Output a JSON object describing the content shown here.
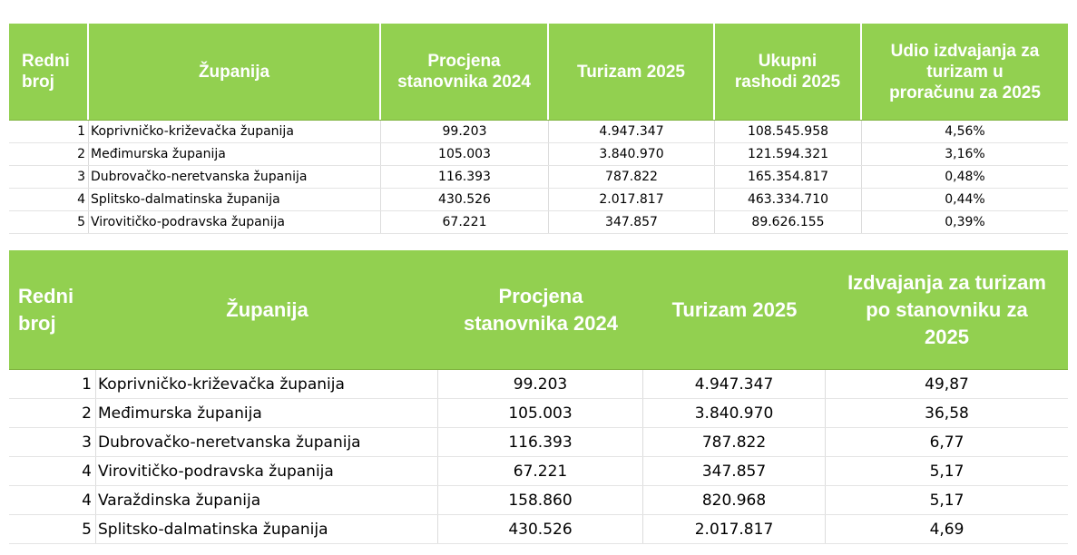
{
  "table1": {
    "headers": {
      "rank": "Redni\nbroj",
      "county": "Županija",
      "population": "Procjena\nstanovnika 2024",
      "tourism": "Turizam 2025",
      "expenses": "Ukupni\nrashodi 2025",
      "share": "Udio izdvajanja za\nturizam u\nproračunu za 2025"
    },
    "rows": [
      {
        "rank": "1",
        "county": "Koprivničko-križevačka županija",
        "population": "99.203",
        "tourism": "4.947.347",
        "expenses": "108.545.958",
        "share": "4,56%"
      },
      {
        "rank": "2",
        "county": "Međimurska županija",
        "population": "105.003",
        "tourism": "3.840.970",
        "expenses": "121.594.321",
        "share": "3,16%"
      },
      {
        "rank": "3",
        "county": "Dubrovačko-neretvanska županija",
        "population": "116.393",
        "tourism": "787.822",
        "expenses": "165.354.817",
        "share": "0,48%"
      },
      {
        "rank": "4",
        "county": "Splitsko-dalmatinska županija",
        "population": "430.526",
        "tourism": "2.017.817",
        "expenses": "463.334.710",
        "share": "0,44%"
      },
      {
        "rank": "5",
        "county": "Virovitičko-podravska županija",
        "population": "67.221",
        "tourism": "347.857",
        "expenses": "89.626.155",
        "share": "0,39%"
      }
    ]
  },
  "table2": {
    "headers": {
      "rank": "Redni\nbroj",
      "county": "Županija",
      "population": "Procjena\nstanovnika 2024",
      "tourism": "Turizam 2025",
      "per_capita": "Izdvajanja za turizam\npo stanovniku za\n2025"
    },
    "rows": [
      {
        "rank": "1",
        "county": "Koprivničko-križevačka županija",
        "population": "99.203",
        "tourism": "4.947.347",
        "per_capita": "49,87"
      },
      {
        "rank": "2",
        "county": "Međimurska županija",
        "population": "105.003",
        "tourism": "3.840.970",
        "per_capita": "36,58"
      },
      {
        "rank": "3",
        "county": "Dubrovačko-neretvanska županija",
        "population": "116.393",
        "tourism": "787.822",
        "per_capita": "6,77"
      },
      {
        "rank": "4",
        "county": "Virovitičko-podravska županija",
        "population": "67.221",
        "tourism": "347.857",
        "per_capita": "5,17"
      },
      {
        "rank": "4",
        "county": "Varaždinska županija",
        "population": "158.860",
        "tourism": "820.968",
        "per_capita": "5,17"
      },
      {
        "rank": "5",
        "county": "Splitsko-dalmatinska županija",
        "population": "430.526",
        "tourism": "2.017.817",
        "per_capita": "4,69"
      }
    ]
  },
  "colors": {
    "header_bg": "#92d050",
    "header_text": "#ffffff"
  }
}
